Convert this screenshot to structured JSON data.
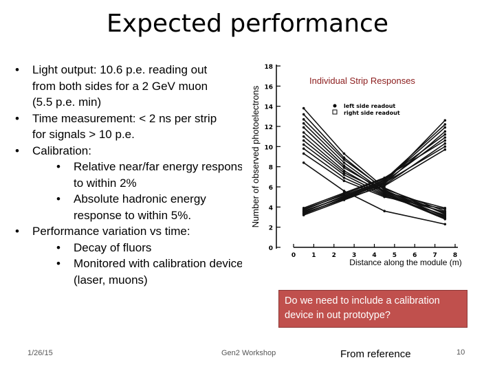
{
  "slide": {
    "title": "Expected performance",
    "date": "1/26/15",
    "footer_center": "Gen2 Workshop",
    "page_number": "10",
    "reference": "From reference",
    "callout": "Do we need to include a calibration device in out prototype?",
    "bullet_glyph": "•",
    "bullets": {
      "light_output": {
        "line1": "Light output: 10.6 p.e. reading out",
        "line2": "from both sides for a 2 GeV muon",
        "line3": "(5.5 p.e. min)"
      },
      "time": {
        "line1": "Time measurement:  < 2 ns per strip",
        "line2": "for signals > 10 p.e."
      },
      "calibration": "Calibration:",
      "near_far": {
        "line1": "Relative near/far energy response",
        "line2": "to within 2%"
      },
      "hadronic": {
        "line1": "Absolute hadronic energy",
        "line2": "response to within 5%."
      },
      "variation": "Performance variation vs time:",
      "decay": "Decay of fluors",
      "monitored": {
        "line1": "Monitored with calibration devices",
        "line2": "(laser, muons)"
      }
    }
  },
  "chart_data": {
    "type": "line",
    "title": "Individual Strip Responses",
    "xlabel": "Distance along the module (m)",
    "ylabel": "Number of observed photoelectrons",
    "xlim": [
      0,
      8
    ],
    "ylim": [
      0,
      18
    ],
    "x_ticks": [
      "0",
      "1",
      "2",
      "3",
      "4",
      "5",
      "6",
      "7",
      "8"
    ],
    "y_ticks": [
      "0",
      "2",
      "4",
      "6",
      "8",
      "10",
      "12",
      "14",
      "16",
      "18"
    ],
    "legend": [
      "left side readout",
      "right side readout"
    ],
    "legend_position": "top-center",
    "x": [
      0.5,
      2.5,
      4.5,
      7.5
    ],
    "series": [
      {
        "name": "left side readout",
        "values": [
          13.8,
          9.3,
          5.9,
          3.3
        ]
      },
      {
        "name": "left side readout",
        "values": [
          13.2,
          8.9,
          5.7,
          3.0
        ]
      },
      {
        "name": "left side readout",
        "values": [
          12.7,
          8.7,
          5.8,
          3.6
        ]
      },
      {
        "name": "left side readout",
        "values": [
          12.3,
          8.4,
          5.5,
          3.1
        ]
      },
      {
        "name": "left side readout",
        "values": [
          11.9,
          8.1,
          5.4,
          2.9
        ]
      },
      {
        "name": "left side readout",
        "values": [
          11.4,
          7.9,
          5.6,
          3.4
        ]
      },
      {
        "name": "left side readout",
        "values": [
          11.0,
          7.6,
          5.3,
          2.8
        ]
      },
      {
        "name": "left side readout",
        "values": [
          10.6,
          7.4,
          5.5,
          3.9
        ]
      },
      {
        "name": "left side readout",
        "values": [
          10.2,
          7.2,
          5.2,
          3.5
        ]
      },
      {
        "name": "left side readout",
        "values": [
          9.8,
          6.9,
          5.1,
          3.2
        ]
      },
      {
        "name": "left side readout",
        "values": [
          9.3,
          6.6,
          5.0,
          3.8
        ]
      },
      {
        "name": "left side readout",
        "values": [
          8.4,
          5.6,
          3.6,
          2.3
        ]
      },
      {
        "name": "right side readout",
        "values": [
          3.4,
          4.8,
          6.4,
          12.6
        ]
      },
      {
        "name": "right side readout",
        "values": [
          3.6,
          5.0,
          6.7,
          12.2
        ]
      },
      {
        "name": "right side readout",
        "values": [
          3.8,
          5.2,
          6.6,
          11.9
        ]
      },
      {
        "name": "right side readout",
        "values": [
          3.3,
          4.9,
          6.3,
          11.5
        ]
      },
      {
        "name": "right side readout",
        "values": [
          3.7,
          5.3,
          6.8,
          11.2
        ]
      },
      {
        "name": "right side readout",
        "values": [
          3.5,
          5.1,
          6.5,
          10.9
        ]
      },
      {
        "name": "right side readout",
        "values": [
          3.9,
          5.4,
          6.9,
          10.6
        ]
      },
      {
        "name": "right side readout",
        "values": [
          3.2,
          4.7,
          6.2,
          10.3
        ]
      },
      {
        "name": "right side readout",
        "values": [
          3.6,
          5.0,
          6.4,
          10.0
        ]
      },
      {
        "name": "right side readout",
        "values": [
          3.4,
          4.8,
          6.1,
          9.7
        ]
      }
    ]
  }
}
